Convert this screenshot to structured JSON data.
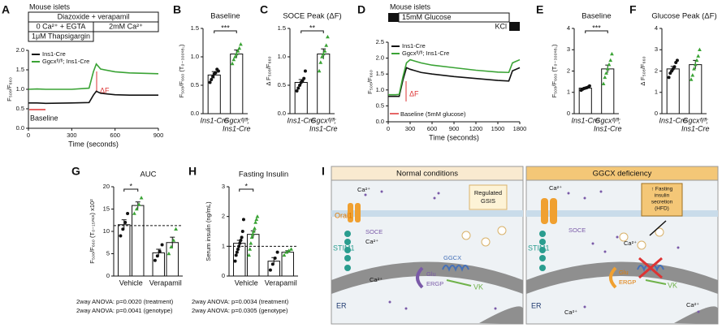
{
  "chart_data": [
    {
      "panel_label": "A",
      "type": "line",
      "y_label": "F₅₀₈/F₆₆₀",
      "x_label": "Time (seconds)",
      "x": [
        0,
        60,
        120,
        300,
        420,
        450,
        470,
        500,
        600,
        700,
        800,
        900
      ],
      "xlim": [
        0,
        900
      ],
      "xticks": [
        0,
        300,
        600,
        900
      ],
      "ylim": [
        0,
        2
      ],
      "yticks": [
        {
          "value": 0,
          "label": "0.0"
        },
        0.5,
        {
          "value": 1,
          "label": "1.0"
        },
        1.5,
        {
          "value": 2,
          "label": "2.0"
        }
      ],
      "series": [
        {
          "name": "Ins1-Cre",
          "color": "#111111",
          "values": [
            0.65,
            0.65,
            0.64,
            0.65,
            0.66,
            0.85,
            0.95,
            0.9,
            0.86,
            0.85,
            0.85,
            0.85
          ]
        },
        {
          "name": "Ggcxᶠˡ/ᶠˡ; Ins1-Cre",
          "color": "#3aa335",
          "values": [
            1.0,
            1.01,
            1.0,
            1.0,
            1.03,
            1.45,
            1.65,
            1.52,
            1.45,
            1.42,
            1.41,
            1.4
          ]
        }
      ],
      "annotations": [
        "Mouse islets",
        "Diazoxide + verapamil",
        "0 Ca²⁺ + EGTA",
        "2mM Ca²⁺",
        "1μM Thapsigargin",
        "ΔF",
        "Baseline"
      ]
    },
    {
      "panel_label": "B",
      "type": "bar",
      "title": "Baseline",
      "y_label": "F₅₀₈/F₆₆₀ (T₀₋₃₀₀ₛₑ꜀)",
      "categories": [
        [
          "Ins1-Cre"
        ],
        [
          "Ggcxᶠˡ/ᶠˡ;",
          "Ins1-Cre"
        ]
      ],
      "values": [
        0.68,
        1.05
      ],
      "errors": [
        0.06,
        0.07
      ],
      "colors": [
        "#111111",
        "#3aa335"
      ],
      "points": [
        [
          0.55,
          0.6,
          0.65,
          0.7,
          0.72,
          0.78,
          0.75
        ],
        [
          0.88,
          0.95,
          1.0,
          1.05,
          1.1,
          1.15,
          1.22
        ]
      ],
      "ylim": [
        0,
        1.5
      ],
      "yticks": [
        {
          "value": 0,
          "label": "0.0"
        },
        0.5,
        {
          "value": 1,
          "label": "1.0"
        },
        1.5
      ],
      "significance": "***"
    },
    {
      "panel_label": "C",
      "type": "bar",
      "title": "SOCE Peak (ΔF)",
      "y_label": "Δ F₅₀₈/F₆₆₀",
      "categories": [
        [
          "Ins1-Cre"
        ],
        [
          "Ggcxᶠˡ/ᶠˡ;",
          "Ins1-Cre"
        ]
      ],
      "values": [
        0.55,
        1.05
      ],
      "errors": [
        0.05,
        0.09
      ],
      "colors": [
        "#111111",
        "#3aa335"
      ],
      "points": [
        [
          0.4,
          0.45,
          0.5,
          0.55,
          0.58,
          0.62,
          0.75
        ],
        [
          0.75,
          0.9,
          1.0,
          1.05,
          1.1,
          1.2,
          1.35
        ]
      ],
      "ylim": [
        0,
        1.5
      ],
      "yticks": [
        {
          "value": 0,
          "label": "0.0"
        },
        0.5,
        {
          "value": 1,
          "label": "1.0"
        },
        1.5
      ],
      "significance": "**"
    },
    {
      "panel_label": "D",
      "type": "line",
      "y_label": "F₅₀₈/F₆₆₀",
      "x_label": "Time (seconds)",
      "x": [
        0,
        100,
        150,
        200,
        250,
        300,
        450,
        600,
        900,
        1200,
        1500,
        1650,
        1700,
        1800
      ],
      "xlim": [
        0,
        1800
      ],
      "xticks": [
        0,
        300,
        600,
        900,
        1200,
        1500,
        1800
      ],
      "ylim": [
        0,
        2.5
      ],
      "yticks": [
        {
          "value": 0,
          "label": "0.0"
        },
        0.5,
        {
          "value": 1,
          "label": "1.0"
        },
        1.5,
        {
          "value": 2,
          "label": "2.0"
        },
        2.5
      ],
      "series": [
        {
          "name": "Ins1-Cre",
          "color": "#111111",
          "values": [
            0.8,
            0.8,
            0.8,
            1.3,
            1.7,
            1.65,
            1.55,
            1.5,
            1.42,
            1.36,
            1.3,
            1.28,
            1.6,
            1.7
          ]
        },
        {
          "name": "Ggcxᶠˡ/ᶠˡ; Ins1-Cre",
          "color": "#3aa335",
          "values": [
            0.85,
            0.85,
            0.86,
            1.4,
            1.85,
            1.95,
            1.85,
            1.78,
            1.7,
            1.62,
            1.56,
            1.55,
            1.85,
            1.95
          ]
        }
      ],
      "annotations": [
        "Mouse islets",
        "15mM Glucose",
        "KCl",
        "Baseline (5mM glucose)",
        "ΔF"
      ]
    },
    {
      "panel_label": "E",
      "type": "bar",
      "title": "Baseline",
      "y_label": "F₅₀₈/F₆₆₀ (T₀₋₃₀₀ₛₑ꜀)",
      "categories": [
        [
          "Ins1-Cre"
        ],
        [
          "Ggcxᶠˡ/ᶠˡ;",
          "Ins1-Cre"
        ]
      ],
      "values": [
        1.2,
        2.1
      ],
      "errors": [
        0.03,
        0.18
      ],
      "colors": [
        "#111111",
        "#3aa335"
      ],
      "points": [
        [
          1.1,
          1.15,
          1.18,
          1.2,
          1.22,
          1.25,
          1.3
        ],
        [
          1.4,
          1.7,
          1.9,
          2.1,
          2.3,
          2.5,
          2.8
        ]
      ],
      "ylim": [
        0,
        4
      ],
      "yticks": [
        0,
        1,
        2,
        3,
        4
      ],
      "significance": "***"
    },
    {
      "panel_label": "F",
      "type": "bar",
      "title": "Glucose Peak (ΔF)",
      "y_label": "Δ F₅₀₈/F₆₆₀",
      "categories": [
        [
          "Ins1-Cre"
        ],
        [
          "Ggcxᶠˡ/ᶠˡ;",
          "Ins1-Cre"
        ]
      ],
      "values": [
        2.1,
        2.3
      ],
      "errors": [
        0.12,
        0.2
      ],
      "colors": [
        "#111111",
        "#3aa335"
      ],
      "points": [
        [
          1.7,
          1.9,
          2.0,
          2.1,
          2.2,
          2.4,
          2.5
        ],
        [
          1.6,
          1.8,
          2.1,
          2.3,
          2.5,
          2.7,
          3.0
        ]
      ],
      "ylim": [
        0,
        4
      ],
      "yticks": [
        0,
        1,
        2,
        3,
        4
      ]
    },
    {
      "panel_label": "G",
      "type": "bar",
      "title": "AUC",
      "y_label": "F₅₀₈/F₆₆₀ (T₀₋₁₅ₘᵢₙ) x10²",
      "categories": [
        "Vehicle",
        "Verapamil"
      ],
      "series": [
        {
          "color": "#111111",
          "values": [
            11.5,
            5.2
          ],
          "errors": [
            1.1,
            0.8
          ],
          "points": [
            [
              9,
              10.5,
              12,
              14
            ],
            [
              3.5,
              4.5,
              5.5,
              7
            ]
          ]
        },
        {
          "color": "#3aa335",
          "values": [
            15.8,
            7.5
          ],
          "errors": [
            0.8,
            1.2
          ],
          "points": [
            [
              14,
              15,
              16,
              17.5
            ],
            [
              5,
              6.5,
              8,
              10.5
            ]
          ]
        }
      ],
      "ylim": [
        0,
        20
      ],
      "yticks": [
        0,
        5,
        10,
        15,
        20
      ],
      "reference_line": 11.3,
      "significance": "*",
      "anova": [
        "2way ANOVA: p=0.0020 (treatment)",
        "2way ANOVA: p=0.0041 (genotype)"
      ]
    },
    {
      "panel_label": "H",
      "type": "bar",
      "title": "Fasting Insulin",
      "y_label": "Serum insulin (ng/mL)",
      "categories": [
        "Vehicle",
        "Verapamil"
      ],
      "series": [
        {
          "color": "#111111",
          "values": [
            1.1,
            0.5
          ],
          "errors": [
            0.1,
            0.12
          ],
          "points": [
            [
              0.5,
              0.7,
              0.8,
              0.9,
              1.0,
              1.1,
              1.2,
              1.3,
              1.5,
              1.9
            ],
            [
              0.2,
              0.4,
              0.6,
              0.8
            ]
          ]
        },
        {
          "color": "#3aa335",
          "values": [
            1.4,
            0.8
          ],
          "errors": [
            0.12,
            0.05
          ],
          "points": [
            [
              0.7,
              0.9,
              1.1,
              1.3,
              1.4,
              1.5,
              1.6,
              1.8,
              1.9,
              2.0
            ],
            [
              0.7,
              0.8,
              0.85,
              0.9
            ]
          ]
        }
      ],
      "ylim": [
        0,
        3
      ],
      "yticks": [
        0,
        1,
        2,
        3
      ],
      "reference_line": 1.0,
      "significance": "*",
      "anova": [
        "2way ANOVA: p=0.0034 (treatment)",
        "2way ANOVA: p=0.0305 (genotype)"
      ]
    }
  ],
  "diagram": {
    "panel_label": "I",
    "left": {
      "title": "Normal conditions",
      "labels": [
        "Ca²⁺",
        "Orai1",
        "SOCE",
        "STIM1",
        "Ca²⁺",
        "GGCX",
        "Glu",
        "ERGP",
        "VK",
        "ER",
        "Ca²⁺",
        "Regulated",
        "GSIS"
      ]
    },
    "right": {
      "title": "GGCX deficiency",
      "labels": [
        "Ca²⁺",
        "SOCE",
        "STIM1",
        "Ca²⁺",
        "Glu",
        "ERGP",
        "VK",
        "ER",
        "Ca²⁺",
        "Ca²⁺",
        "↑ Fasting",
        "insulin",
        "secretion",
        "(HFD)"
      ]
    }
  }
}
